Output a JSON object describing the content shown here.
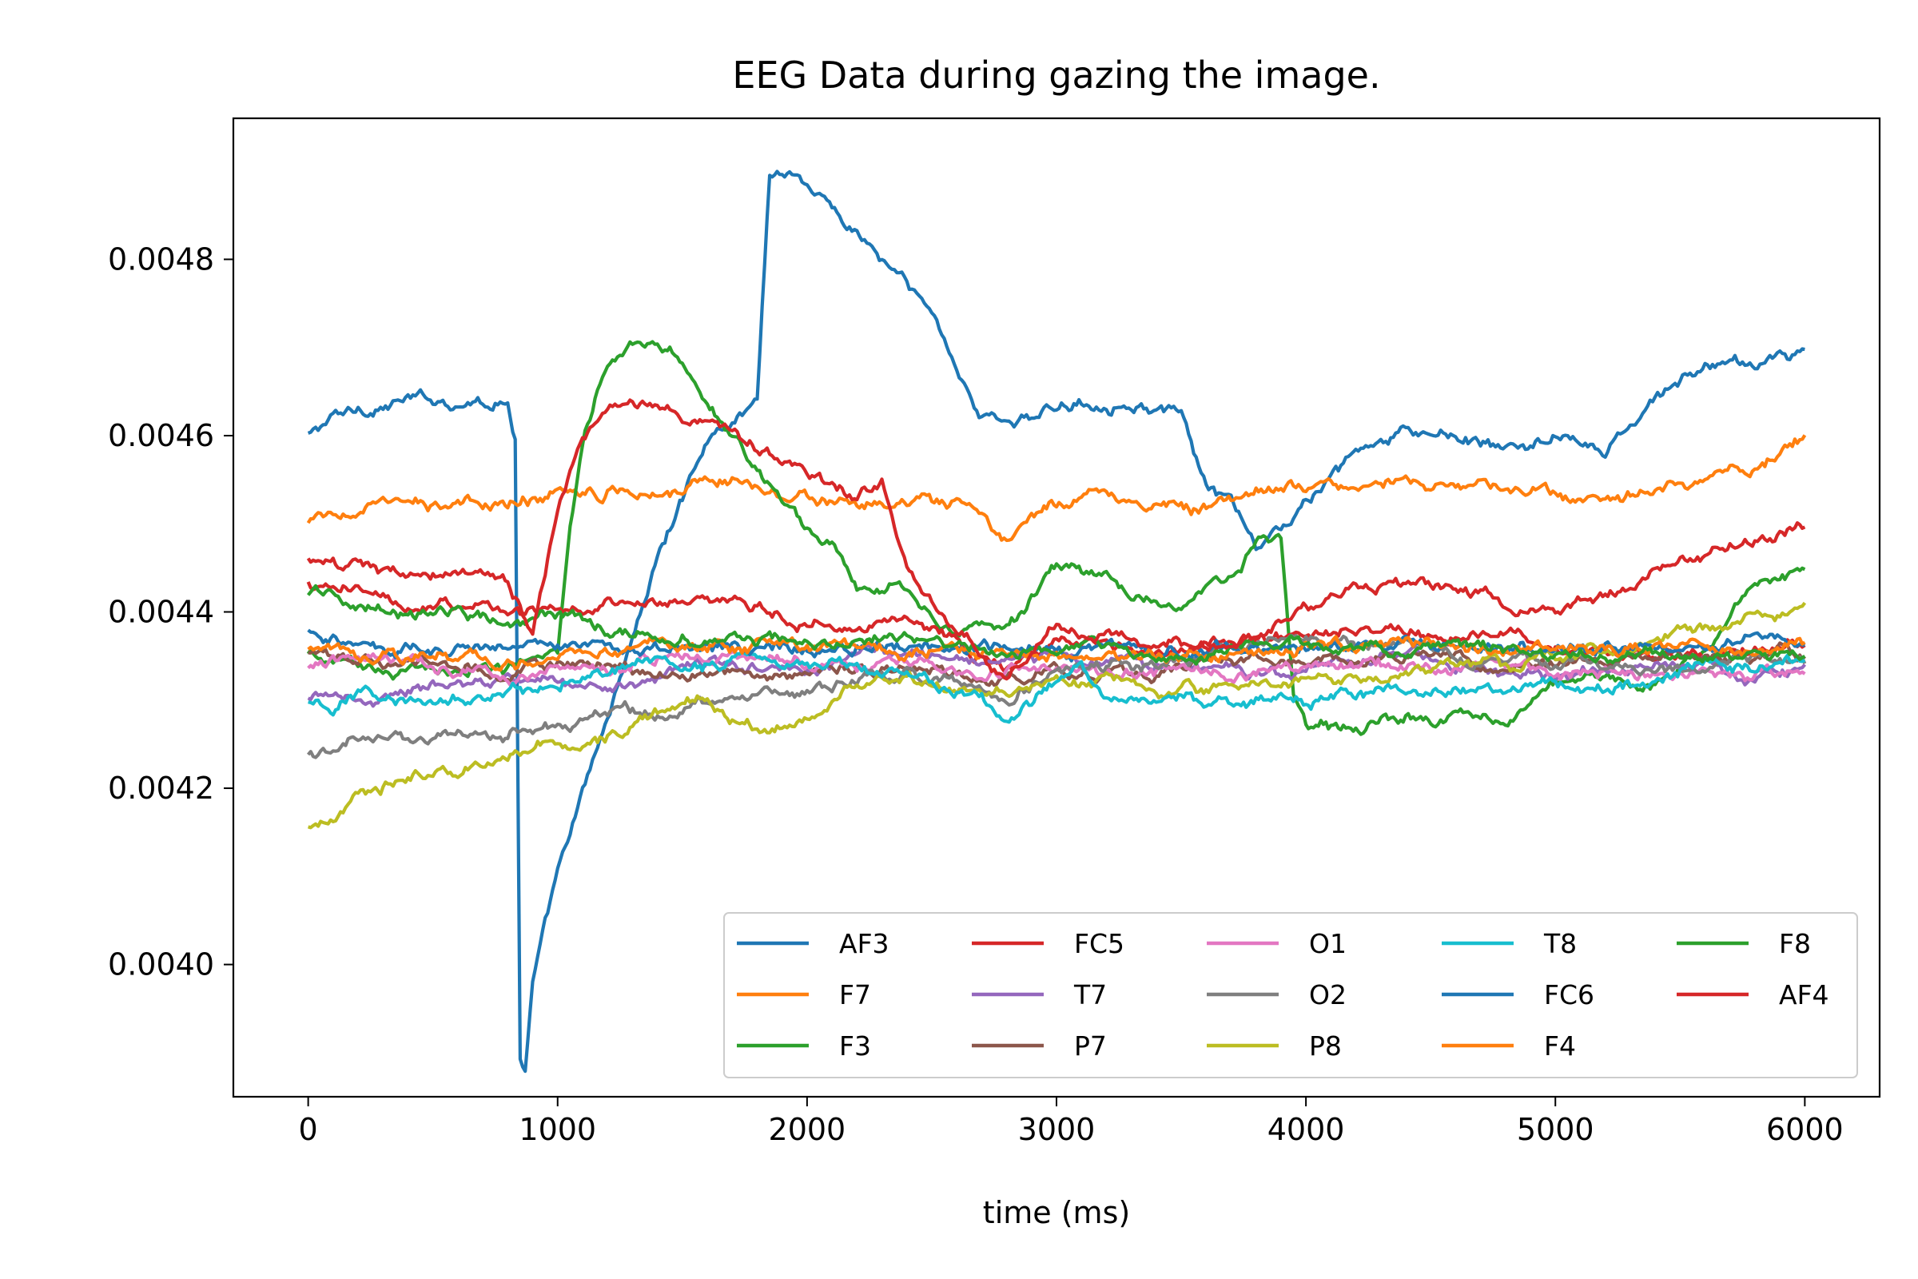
{
  "chart_data": {
    "type": "line",
    "title": "EEG Data during gazing the image.",
    "xlabel": "time (ms)",
    "ylabel": "",
    "xlim": [
      -300,
      6300
    ],
    "ylim": [
      0.00385,
      0.00496
    ],
    "xticks": [
      0,
      1000,
      2000,
      3000,
      4000,
      5000,
      6000
    ],
    "xtick_labels": [
      "0",
      "1000",
      "2000",
      "3000",
      "4000",
      "5000",
      "6000"
    ],
    "yticks": [
      0.004,
      0.0042,
      0.0044,
      0.0046,
      0.0048
    ],
    "ytick_labels": [
      "0.0040",
      "0.0042",
      "0.0044",
      "0.0046",
      "0.0048"
    ],
    "grid": false,
    "legend_position": "lower-right",
    "legend_columns": 5,
    "series": [
      {
        "name": "AF3",
        "color": "#1f77b4",
        "x": [
          0,
          100,
          200,
          400,
          600,
          800,
          830,
          850,
          870,
          900,
          1000,
          1200,
          1400,
          1600,
          1800,
          1850,
          1950,
          2100,
          2300,
          2500,
          2700,
          2900,
          3100,
          3300,
          3500,
          3600,
          3700,
          3800,
          4000,
          4200,
          4400,
          4600,
          4800,
          5000,
          5200,
          5400,
          5600,
          5800,
          6000
        ],
        "y": [
          0.0046,
          0.00462,
          0.00463,
          0.00464,
          0.00464,
          0.00464,
          0.0046,
          0.0039,
          0.00388,
          0.00398,
          0.0041,
          0.00428,
          0.00446,
          0.0046,
          0.00464,
          0.0049,
          0.0049,
          0.00486,
          0.0048,
          0.00474,
          0.00462,
          0.00462,
          0.00464,
          0.00464,
          0.00462,
          0.00454,
          0.00452,
          0.00447,
          0.00452,
          0.00458,
          0.0046,
          0.0046,
          0.00458,
          0.0046,
          0.00458,
          0.00464,
          0.00468,
          0.00468,
          0.0047
        ]
      },
      {
        "name": "F7",
        "color": "#ff7f0e",
        "x": [
          0,
          200,
          400,
          600,
          800,
          1000,
          1200,
          1400,
          1600,
          1800,
          2000,
          2200,
          2400,
          2600,
          2800,
          3000,
          3200,
          3400,
          3600,
          3800,
          4000,
          4200,
          4400,
          4600,
          4800,
          5000,
          5200,
          5400,
          5600,
          5800,
          6000
        ],
        "y": [
          0.0045,
          0.00452,
          0.00452,
          0.00452,
          0.00452,
          0.00454,
          0.00454,
          0.00454,
          0.00455,
          0.00455,
          0.00453,
          0.00452,
          0.00452,
          0.00452,
          0.00448,
          0.00452,
          0.00454,
          0.00452,
          0.00452,
          0.00454,
          0.00454,
          0.00455,
          0.00455,
          0.00454,
          0.00454,
          0.00453,
          0.00452,
          0.00454,
          0.00455,
          0.00457,
          0.0046
        ]
      },
      {
        "name": "F3",
        "color": "#2ca02c",
        "x": [
          0,
          200,
          400,
          600,
          800,
          1000,
          1050,
          1100,
          1150,
          1200,
          1300,
          1400,
          1500,
          1600,
          1800,
          2000,
          2100,
          2200,
          2400,
          2600,
          2800,
          3000,
          3200,
          3400,
          3600,
          3700,
          3800,
          3900,
          3950,
          4000,
          4200,
          4400,
          4600,
          4800,
          5000,
          5200,
          5400,
          5600,
          5800,
          6000
        ],
        "y": [
          0.00435,
          0.00434,
          0.00433,
          0.00434,
          0.00434,
          0.00436,
          0.0045,
          0.0046,
          0.00465,
          0.00468,
          0.0047,
          0.0047,
          0.00468,
          0.00464,
          0.00456,
          0.0045,
          0.00448,
          0.00443,
          0.00443,
          0.00438,
          0.00438,
          0.00445,
          0.00444,
          0.0044,
          0.00442,
          0.00444,
          0.00448,
          0.00448,
          0.0043,
          0.00427,
          0.00427,
          0.00428,
          0.00428,
          0.00428,
          0.00432,
          0.00432,
          0.00432,
          0.00436,
          0.00444,
          0.00445
        ]
      },
      {
        "name": "FC5",
        "color": "#d62728",
        "x": [
          0,
          200,
          400,
          600,
          800,
          1000,
          1200,
          1400,
          1600,
          1800,
          2000,
          2200,
          2300,
          2400,
          2600,
          2800,
          3000,
          3200,
          3400,
          3600,
          3800,
          4000,
          4200,
          4400,
          4600,
          4800,
          5000,
          5200,
          5400,
          5600,
          5800,
          6000
        ],
        "y": [
          0.00443,
          0.00442,
          0.00441,
          0.00441,
          0.0044,
          0.0044,
          0.00441,
          0.00441,
          0.00441,
          0.0044,
          0.00439,
          0.00438,
          0.00439,
          0.0044,
          0.00437,
          0.00434,
          0.00437,
          0.00436,
          0.00435,
          0.00436,
          0.00437,
          0.00437,
          0.00438,
          0.00438,
          0.00438,
          0.00437,
          0.00436,
          0.00436,
          0.00435,
          0.00435,
          0.00436,
          0.00437
        ]
      },
      {
        "name": "T7",
        "color": "#9467bd",
        "x": [
          0,
          200,
          400,
          600,
          800,
          1000,
          1200,
          1400,
          1600,
          1800,
          2000,
          2200,
          2400,
          2600,
          2800,
          3000,
          3200,
          3400,
          3600,
          3800,
          4000,
          4200,
          4400,
          4600,
          4800,
          5000,
          5200,
          5400,
          5600,
          5800,
          6000
        ],
        "y": [
          0.0043,
          0.0043,
          0.00431,
          0.00432,
          0.00432,
          0.00432,
          0.00432,
          0.00433,
          0.00434,
          0.00434,
          0.00434,
          0.00435,
          0.00436,
          0.00435,
          0.00434,
          0.00435,
          0.00435,
          0.00434,
          0.00434,
          0.00433,
          0.00433,
          0.00434,
          0.00435,
          0.00434,
          0.00433,
          0.00433,
          0.00434,
          0.00434,
          0.00434,
          0.00433,
          0.00433
        ]
      },
      {
        "name": "P7",
        "color": "#8c564b",
        "x": [
          0,
          200,
          400,
          600,
          800,
          1000,
          1200,
          1400,
          1600,
          1800,
          2000,
          2200,
          2400,
          2600,
          2800,
          3000,
          3200,
          3400,
          3600,
          3800,
          4000,
          4200,
          4400,
          4600,
          4800,
          5000,
          5200,
          5400,
          5600,
          5800,
          6000
        ],
        "y": [
          0.00435,
          0.00435,
          0.00434,
          0.00434,
          0.00433,
          0.00434,
          0.00434,
          0.00433,
          0.00433,
          0.00433,
          0.00433,
          0.00434,
          0.00434,
          0.00433,
          0.00432,
          0.00433,
          0.00433,
          0.00433,
          0.00434,
          0.00435,
          0.00435,
          0.00435,
          0.00435,
          0.00435,
          0.00434,
          0.00434,
          0.00434,
          0.00435,
          0.00435,
          0.00435,
          0.00435
        ]
      },
      {
        "name": "O1",
        "color": "#e377c2",
        "x": [
          0,
          200,
          400,
          600,
          800,
          1000,
          1200,
          1400,
          1600,
          1800,
          2000,
          2200,
          2400,
          2600,
          2800,
          3000,
          3200,
          3400,
          3600,
          3800,
          4000,
          4200,
          4400,
          4600,
          4800,
          5000,
          5200,
          5400,
          5600,
          5800,
          6000
        ],
        "y": [
          0.00434,
          0.00435,
          0.00434,
          0.00434,
          0.00433,
          0.00434,
          0.00434,
          0.00435,
          0.00435,
          0.00434,
          0.00434,
          0.00434,
          0.00434,
          0.00433,
          0.00433,
          0.00433,
          0.00433,
          0.00433,
          0.00433,
          0.00433,
          0.00434,
          0.00434,
          0.00434,
          0.00434,
          0.00434,
          0.00433,
          0.00433,
          0.00433,
          0.00433,
          0.00433,
          0.00433
        ]
      },
      {
        "name": "O2",
        "color": "#7f7f7f",
        "x": [
          0,
          100,
          200,
          400,
          600,
          800,
          1000,
          1200,
          1400,
          1600,
          1800,
          2000,
          2200,
          2400,
          2600,
          2800,
          3000,
          3200,
          3400,
          3600,
          3800,
          4000,
          4200,
          4400,
          4600,
          4800,
          5000,
          5200,
          5400,
          5600,
          5800,
          6000
        ],
        "y": [
          0.00424,
          0.00424,
          0.00425,
          0.00425,
          0.00426,
          0.00426,
          0.00427,
          0.00428,
          0.00429,
          0.0043,
          0.00431,
          0.00431,
          0.00432,
          0.00433,
          0.00432,
          0.00431,
          0.00433,
          0.00434,
          0.00434,
          0.00435,
          0.00436,
          0.00437,
          0.00437,
          0.00436,
          0.00435,
          0.00434,
          0.00434,
          0.00434,
          0.00434,
          0.00434,
          0.00435,
          0.00435
        ]
      },
      {
        "name": "P8",
        "color": "#bcbd22",
        "x": [
          0,
          100,
          200,
          400,
          600,
          800,
          1000,
          1200,
          1400,
          1600,
          1800,
          2000,
          2100,
          2200,
          2400,
          2600,
          2800,
          3000,
          3200,
          3400,
          3600,
          3800,
          4000,
          4200,
          4400,
          4600,
          4800,
          5000,
          5200,
          5400,
          5600,
          5800,
          6000
        ],
        "y": [
          0.00416,
          0.00416,
          0.00419,
          0.00421,
          0.00422,
          0.00424,
          0.00425,
          0.00426,
          0.00428,
          0.0043,
          0.00427,
          0.00428,
          0.00431,
          0.00432,
          0.00432,
          0.00431,
          0.00431,
          0.00432,
          0.00432,
          0.00431,
          0.00431,
          0.00432,
          0.00432,
          0.00433,
          0.00433,
          0.00434,
          0.00434,
          0.00435,
          0.00436,
          0.00437,
          0.00438,
          0.00439,
          0.0044
        ]
      },
      {
        "name": "T8",
        "color": "#17becf",
        "x": [
          0,
          100,
          200,
          400,
          600,
          800,
          1000,
          1200,
          1400,
          1600,
          1800,
          2000,
          2200,
          2400,
          2600,
          2800,
          3000,
          3100,
          3200,
          3400,
          3600,
          3800,
          4000,
          4200,
          4400,
          4600,
          4800,
          5000,
          5200,
          5400,
          5600,
          5800,
          6000
        ],
        "y": [
          0.0043,
          0.00429,
          0.00431,
          0.0043,
          0.0043,
          0.00431,
          0.00432,
          0.00433,
          0.00434,
          0.00434,
          0.00435,
          0.00434,
          0.00433,
          0.00433,
          0.00431,
          0.00428,
          0.00432,
          0.00434,
          0.0043,
          0.0043,
          0.0043,
          0.0043,
          0.0043,
          0.00431,
          0.00431,
          0.00431,
          0.00431,
          0.00432,
          0.00431,
          0.00432,
          0.00434,
          0.00434,
          0.00435
        ]
      },
      {
        "name": "FC6",
        "color": "#1f77b4",
        "x": [
          0,
          200,
          400,
          600,
          800,
          1000,
          1200,
          1400,
          1600,
          1800,
          2000,
          2200,
          2400,
          2600,
          2800,
          3000,
          3200,
          3400,
          3600,
          3800,
          4000,
          4200,
          4400,
          4600,
          4800,
          5000,
          5200,
          5400,
          5600,
          5800,
          6000
        ],
        "y": [
          0.00438,
          0.00437,
          0.00436,
          0.00436,
          0.00436,
          0.00436,
          0.00436,
          0.00436,
          0.00436,
          0.00436,
          0.00436,
          0.00436,
          0.00436,
          0.00436,
          0.00436,
          0.00436,
          0.00436,
          0.00436,
          0.00436,
          0.00436,
          0.00436,
          0.00437,
          0.00437,
          0.00437,
          0.00436,
          0.00436,
          0.00436,
          0.00436,
          0.00436,
          0.00437,
          0.00437
        ]
      },
      {
        "name": "F4",
        "color": "#ff7f0e",
        "x": [
          0,
          200,
          400,
          600,
          800,
          1000,
          1200,
          1400,
          1600,
          1800,
          2000,
          2200,
          2400,
          2600,
          2800,
          3000,
          3200,
          3400,
          3600,
          3800,
          4000,
          4200,
          4400,
          4600,
          4800,
          5000,
          5200,
          5400,
          5600,
          5800,
          6000
        ],
        "y": [
          0.00436,
          0.00435,
          0.00435,
          0.00435,
          0.00434,
          0.00435,
          0.00436,
          0.00436,
          0.00436,
          0.00436,
          0.00436,
          0.00436,
          0.00436,
          0.00436,
          0.00435,
          0.00435,
          0.00435,
          0.00435,
          0.00435,
          0.00435,
          0.00436,
          0.00436,
          0.00436,
          0.00436,
          0.00436,
          0.00436,
          0.00436,
          0.00436,
          0.00436,
          0.00436,
          0.00436
        ]
      },
      {
        "name": "F8",
        "color": "#2ca02c",
        "x": [
          0,
          200,
          400,
          600,
          800,
          1000,
          1200,
          1400,
          1600,
          1800,
          2000,
          2200,
          2400,
          2600,
          2800,
          3000,
          3200,
          3400,
          3600,
          3800,
          4000,
          4200,
          4400,
          4600,
          4800,
          5000,
          5200,
          5400,
          5600,
          5800,
          6000
        ],
        "y": [
          0.00442,
          0.00441,
          0.0044,
          0.0044,
          0.00439,
          0.00439,
          0.00438,
          0.00437,
          0.00437,
          0.00437,
          0.00437,
          0.00437,
          0.00437,
          0.00436,
          0.00435,
          0.00436,
          0.00436,
          0.00435,
          0.00435,
          0.00436,
          0.00436,
          0.00436,
          0.00436,
          0.00436,
          0.00436,
          0.00435,
          0.00435,
          0.00435,
          0.00435,
          0.00435,
          0.00435
        ]
      },
      {
        "name": "AF4",
        "color": "#d62728",
        "x": [
          0,
          200,
          400,
          600,
          800,
          900,
          1000,
          1100,
          1200,
          1300,
          1400,
          1600,
          1800,
          2000,
          2200,
          2300,
          2400,
          2500,
          2600,
          2800,
          3000,
          3200,
          3400,
          3600,
          3800,
          4000,
          4200,
          4400,
          4600,
          4800,
          5000,
          5200,
          5400,
          5600,
          5800,
          6000
        ],
        "y": [
          0.00446,
          0.00445,
          0.00444,
          0.00445,
          0.00444,
          0.00438,
          0.00452,
          0.0046,
          0.00462,
          0.00463,
          0.00463,
          0.00462,
          0.00458,
          0.00456,
          0.00453,
          0.00455,
          0.00445,
          0.00441,
          0.00438,
          0.00432,
          0.00438,
          0.00438,
          0.00437,
          0.00436,
          0.00437,
          0.0044,
          0.00443,
          0.00443,
          0.00443,
          0.00441,
          0.0044,
          0.00442,
          0.00445,
          0.00446,
          0.00448,
          0.0045
        ]
      }
    ]
  }
}
